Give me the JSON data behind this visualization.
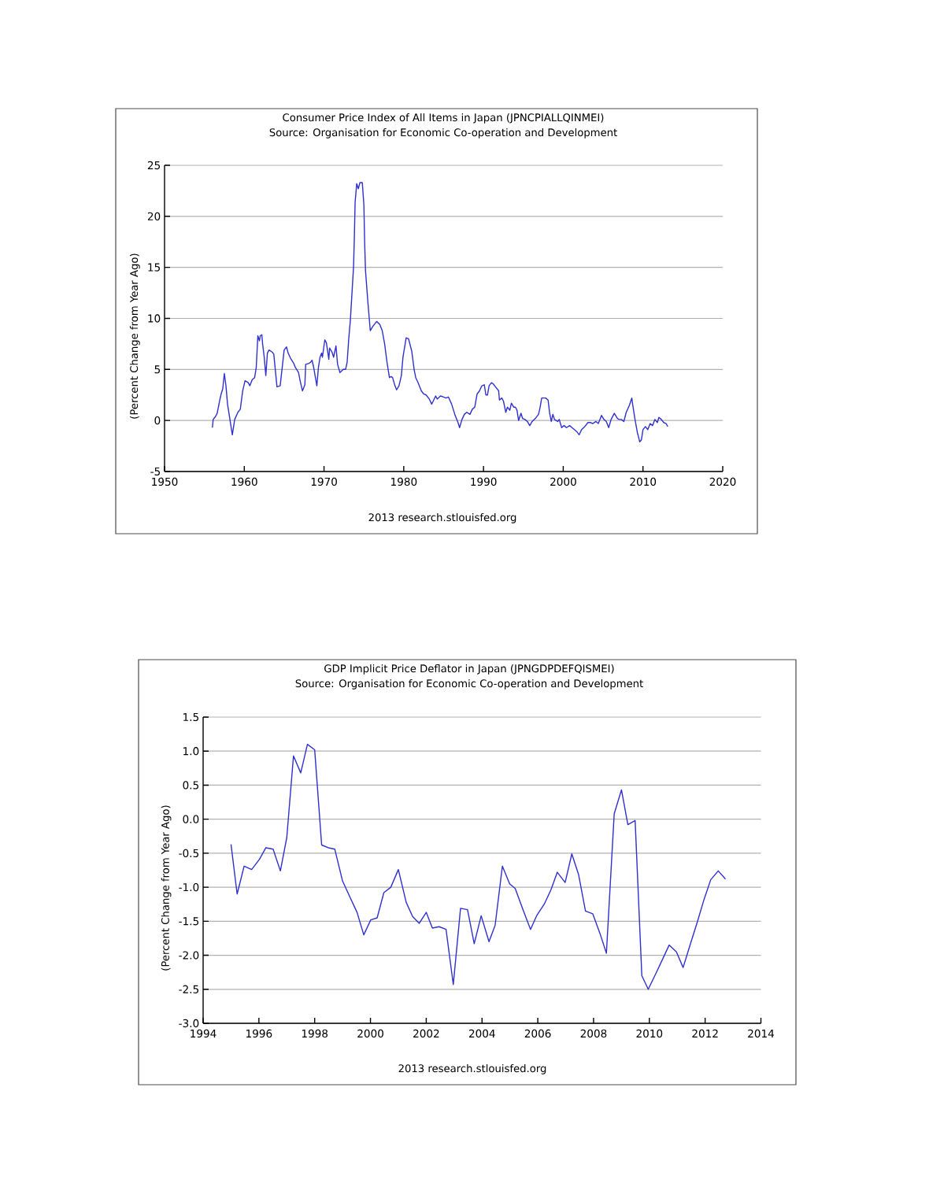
{
  "chart_data": [
    {
      "type": "line",
      "title": "Consumer Price Index of All Items in Japan (JPNCPIALLQINMEI)",
      "subtitle": "Source: Organisation for Economic Co-operation and Development",
      "ylabel": "(Percent Change from Year Ago)",
      "annotations": [
        "2013 research.stlouisfed.org"
      ],
      "x": [
        1956.0,
        1956.1,
        1956.4,
        1956.6,
        1956.9,
        1957.1,
        1957.3,
        1957.5,
        1957.7,
        1957.9,
        1958.2,
        1958.5,
        1958.8,
        1959.2,
        1959.5,
        1959.8,
        1960.1,
        1960.5,
        1960.7,
        1961.0,
        1961.3,
        1961.5,
        1961.7,
        1961.9,
        1962.0,
        1962.2,
        1962.3,
        1962.5,
        1962.7,
        1962.9,
        1963.1,
        1963.5,
        1963.7,
        1963.9,
        1964.1,
        1964.5,
        1964.8,
        1965.0,
        1965.3,
        1965.5,
        1965.8,
        1966.2,
        1966.4,
        1966.8,
        1967.0,
        1967.3,
        1967.6,
        1967.7,
        1968.1,
        1968.3,
        1968.5,
        1968.7,
        1969.1,
        1969.3,
        1969.5,
        1969.7,
        1969.8,
        1970.1,
        1970.3,
        1970.6,
        1970.7,
        1971.0,
        1971.2,
        1971.5,
        1971.7,
        1972.0,
        1972.4,
        1972.7,
        1972.9,
        1973.1,
        1973.3,
        1973.5,
        1973.7,
        1973.8,
        1973.9,
        1974.1,
        1974.3,
        1974.5,
        1974.8,
        1975.0,
        1975.1,
        1975.2,
        1975.5,
        1975.8,
        1976.1,
        1976.6,
        1977.0,
        1977.3,
        1977.6,
        1977.9,
        1978.2,
        1978.4,
        1978.6,
        1978.9,
        1979.1,
        1979.4,
        1979.7,
        1979.9,
        1980.3,
        1980.6,
        1981.0,
        1981.3,
        1981.5,
        1981.8,
        1982.2,
        1982.5,
        1982.8,
        1983.2,
        1983.5,
        1983.7,
        1984.0,
        1984.2,
        1984.6,
        1985.0,
        1985.3,
        1985.6,
        1986.0,
        1986.4,
        1986.8,
        1987.0,
        1987.3,
        1987.6,
        1987.9,
        1988.3,
        1988.6,
        1988.9,
        1989.2,
        1989.5,
        1989.8,
        1990.1,
        1990.3,
        1990.5,
        1990.7,
        1991.0,
        1991.2,
        1991.5,
        1991.9,
        1992.0,
        1992.3,
        1992.5,
        1992.8,
        1993.0,
        1993.3,
        1993.5,
        1993.8,
        1994.0,
        1994.2,
        1994.4,
        1994.7,
        1994.9,
        1995.2,
        1995.5,
        1995.8,
        1996.1,
        1996.5,
        1996.9,
        1997.1,
        1997.3,
        1997.8,
        1998.1,
        1998.3,
        1998.5,
        1998.7,
        1998.9,
        1999.3,
        1999.5,
        1999.8,
        2000.1,
        2000.4,
        2000.8,
        2001.1,
        2001.4,
        2001.7,
        2002.0,
        2002.3,
        2002.7,
        2003.1,
        2003.4,
        2003.7,
        2004.1,
        2004.4,
        2004.8,
        2005.1,
        2005.4,
        2005.7,
        2006.0,
        2006.4,
        2006.8,
        2007.0,
        2007.3,
        2007.6,
        2007.9,
        2008.3,
        2008.6,
        2008.7,
        2009.0,
        2009.3,
        2009.6,
        2009.8,
        2010.0,
        2010.3,
        2010.6,
        2010.9,
        2011.2,
        2011.5,
        2011.8,
        2012.0,
        2012.3,
        2012.6,
        2012.9,
        2013.1
      ],
      "series": [
        {
          "color": "#3030d0",
          "values": [
            -0.7,
            0.1,
            0.4,
            0.7,
            1.9,
            2.6,
            3.1,
            4.6,
            3.4,
            1.6,
            0.1,
            -1.4,
            0.1,
            0.8,
            1.1,
            2.9,
            3.9,
            3.7,
            3.4,
            4.0,
            4.2,
            5.2,
            8.3,
            7.8,
            8.3,
            8.4,
            7.5,
            6.2,
            4.4,
            6.6,
            6.9,
            6.7,
            6.5,
            4.9,
            3.3,
            3.4,
            5.5,
            6.9,
            7.2,
            6.6,
            6.1,
            5.6,
            5.2,
            4.7,
            3.9,
            2.9,
            3.5,
            5.5,
            5.6,
            5.7,
            5.9,
            5.2,
            3.4,
            5.2,
            6.2,
            6.6,
            6.2,
            7.9,
            7.6,
            6.0,
            7.1,
            6.7,
            6.2,
            7.3,
            5.5,
            4.7,
            5.0,
            5.0,
            5.7,
            8.0,
            9.8,
            12.4,
            15.0,
            17.8,
            21.4,
            23.2,
            22.7,
            23.3,
            23.3,
            21.1,
            17.3,
            14.7,
            11.6,
            8.8,
            9.2,
            9.7,
            9.4,
            8.8,
            7.5,
            5.7,
            4.2,
            4.3,
            4.2,
            3.4,
            3.0,
            3.4,
            4.4,
            6.2,
            8.1,
            8.0,
            6.8,
            5.0,
            4.2,
            3.7,
            2.9,
            2.6,
            2.5,
            2.1,
            1.6,
            1.9,
            2.4,
            2.1,
            2.4,
            2.3,
            2.2,
            2.3,
            1.6,
            0.6,
            -0.2,
            -0.7,
            0.1,
            0.6,
            0.8,
            0.6,
            1.1,
            1.3,
            2.6,
            2.9,
            3.4,
            3.5,
            2.5,
            2.5,
            3.4,
            3.7,
            3.6,
            3.3,
            2.9,
            2.0,
            2.2,
            1.9,
            0.8,
            1.3,
            1.0,
            1.7,
            1.3,
            1.3,
            1.0,
            0.0,
            0.7,
            0.2,
            0.1,
            -0.1,
            -0.5,
            -0.1,
            0.2,
            0.6,
            1.3,
            2.2,
            2.2,
            2.0,
            0.7,
            -0.1,
            0.6,
            0.1,
            -0.1,
            0.1,
            -0.7,
            -0.5,
            -0.7,
            -0.5,
            -0.7,
            -0.9,
            -1.1,
            -1.4,
            -0.9,
            -0.6,
            -0.2,
            -0.2,
            -0.3,
            -0.1,
            -0.3,
            0.5,
            0.1,
            -0.1,
            -0.7,
            0.1,
            0.7,
            0.2,
            0.1,
            0.1,
            -0.1,
            0.8,
            1.5,
            2.2,
            1.6,
            0.1,
            -1.2,
            -2.1,
            -1.9,
            -0.9,
            -0.6,
            -0.9,
            -0.3,
            -0.5,
            0.1,
            -0.2,
            0.3,
            0.1,
            -0.2,
            -0.3,
            -0.6
          ]
        }
      ],
      "xlim": [
        1950,
        2020
      ],
      "xticks": [
        1950,
        1960,
        1970,
        1980,
        1990,
        2000,
        2010,
        2020
      ],
      "ylim": [
        -5,
        25
      ],
      "yticks": [
        -5,
        0,
        5,
        10,
        15,
        20,
        25
      ],
      "grid": "y"
    },
    {
      "type": "line",
      "title": "GDP Implicit Price Deflator in Japan (JPNGDPDEFQISMEI)",
      "subtitle": "Source: Organisation for Economic Co-operation and Development",
      "ylabel": "(Percent Change from Year Ago)",
      "annotations": [
        "2013 research.stlouisfed.org"
      ],
      "x": [
        1995.0,
        1995.22,
        1995.47,
        1995.74,
        1996.02,
        1996.25,
        1996.51,
        1996.77,
        1997.0,
        1997.24,
        1997.5,
        1997.74,
        1998.0,
        1998.25,
        1998.49,
        1998.72,
        1999.0,
        1999.26,
        1999.52,
        1999.76,
        2000.01,
        2000.24,
        2000.48,
        2000.73,
        2001.0,
        2001.28,
        2001.51,
        2001.75,
        2002.0,
        2002.22,
        2002.46,
        2002.71,
        2002.97,
        2003.23,
        2003.48,
        2003.72,
        2003.97,
        2004.25,
        2004.47,
        2004.73,
        2004.99,
        2005.19,
        2005.47,
        2005.74,
        2005.97,
        2006.23,
        2006.47,
        2006.7,
        2006.98,
        2007.22,
        2007.46,
        2007.71,
        2007.97,
        2008.23,
        2008.46,
        2008.74,
        2009.0,
        2009.23,
        2009.49,
        2009.73,
        2009.96,
        2010.22,
        2010.46,
        2010.71,
        2010.97,
        2011.21,
        2011.46,
        2011.72,
        2011.96,
        2012.2,
        2012.47,
        2012.73
      ],
      "series": [
        {
          "color": "#3030d0",
          "values": [
            -0.37,
            -1.1,
            -0.69,
            -0.74,
            -0.59,
            -0.42,
            -0.44,
            -0.76,
            -0.27,
            0.93,
            0.68,
            1.1,
            1.02,
            -0.38,
            -0.42,
            -0.44,
            -0.91,
            -1.14,
            -1.37,
            -1.7,
            -1.48,
            -1.45,
            -1.08,
            -1.0,
            -0.74,
            -1.22,
            -1.43,
            -1.53,
            -1.37,
            -1.6,
            -1.58,
            -1.62,
            -2.43,
            -1.31,
            -1.33,
            -1.83,
            -1.42,
            -1.8,
            -1.56,
            -0.69,
            -0.95,
            -1.02,
            -1.33,
            -1.62,
            -1.41,
            -1.25,
            -1.04,
            -0.78,
            -0.93,
            -0.51,
            -0.81,
            -1.35,
            -1.39,
            -1.68,
            -1.97,
            0.08,
            0.43,
            -0.08,
            -0.02,
            -2.3,
            -2.5,
            -2.28,
            -2.07,
            -1.85,
            -1.95,
            -2.18,
            -1.85,
            -1.51,
            -1.18,
            -0.89,
            -0.76,
            -0.88
          ]
        }
      ],
      "xlim": [
        1994,
        2014
      ],
      "xticks": [
        1994,
        1996,
        1998,
        2000,
        2002,
        2004,
        2006,
        2008,
        2010,
        2012,
        2014
      ],
      "ylim": [
        -3.0,
        1.5
      ],
      "yticks": [
        {
          "value": -3.0,
          "label": "-3.0"
        },
        -2.5,
        {
          "value": -2.0,
          "label": "-2.0"
        },
        -1.5,
        {
          "value": -1.0,
          "label": "-1.0"
        },
        -0.5,
        {
          "value": 0.0,
          "label": "0.0"
        },
        0.5,
        {
          "value": 1.0,
          "label": "1.0"
        },
        1.5
      ],
      "grid": "y"
    }
  ]
}
